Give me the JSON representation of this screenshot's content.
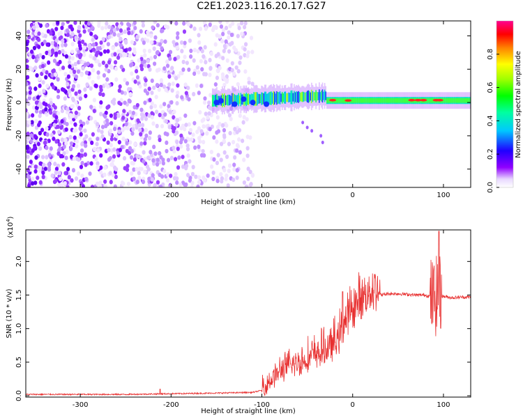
{
  "title": "C2E1.2023.116.20.17.G27",
  "chart_data": [
    {
      "type": "heatmap",
      "xlabel": "Height of straight line (km)",
      "ylabel": "Frequency (Hz)",
      "xlim": [
        -360,
        130
      ],
      "ylim": [
        -51,
        49
      ],
      "x_ticks": [
        -300,
        -200,
        -100,
        0,
        100
      ],
      "y_ticks": [
        40,
        20,
        0,
        -20,
        -40
      ],
      "colorbar": {
        "label": "Normalized spectral amplitude",
        "range": [
          0.0,
          1.0
        ],
        "ticks": [
          "0.0",
          "0.2",
          "0.4",
          "0.6",
          "0.8"
        ],
        "colormap": "rainbow (white → purple → blue → cyan → green → yellow → red → magenta)"
      },
      "regions": [
        {
          "x": [
            -360,
            -110
          ],
          "y": [
            -51,
            49
          ],
          "amplitude": [
            0.0,
            0.15
          ]
        },
        {
          "x": [
            -155,
            130
          ],
          "y": [
            -5,
            8
          ],
          "amplitude": [
            0.3,
            0.9
          ]
        }
      ]
    },
    {
      "type": "line",
      "xlabel": "Height of straight line (km)",
      "ylabel": "SNR (10 * v/v)",
      "y_multiplier": "(x10",
      "y_multiplier_exp": "4",
      "y_multiplier_close": ")",
      "xlim": [
        -360,
        130
      ],
      "ylim": [
        -0.02,
        2.47
      ],
      "x_ticks": [
        -300,
        -200,
        -100,
        0,
        100
      ],
      "y_ticks": [
        "0.0",
        "0.5",
        "1.0",
        "1.5",
        "2.0"
      ],
      "color": "#e83030",
      "series": [
        {
          "x": [
            -360,
            -300,
            -250,
            -200,
            -150,
            -110,
            -100,
            -95,
            -90,
            -85,
            -80,
            -75,
            -70,
            -60,
            -50,
            -40,
            -30,
            -20,
            -15,
            -10,
            -5,
            0,
            10,
            20,
            30,
            40,
            50,
            60,
            70,
            80,
            85,
            90,
            93,
            95,
            97,
            100,
            110,
            120,
            130
          ],
          "y": [
            0.02,
            0.02,
            0.02,
            0.03,
            0.04,
            0.05,
            0.08,
            0.12,
            0.18,
            0.25,
            0.3,
            0.35,
            0.38,
            0.42,
            0.48,
            0.55,
            0.6,
            0.7,
            0.8,
            0.95,
            1.1,
            1.2,
            1.35,
            1.45,
            1.5,
            1.52,
            1.52,
            1.51,
            1.5,
            1.5,
            1.48,
            1.45,
            1.5,
            1.52,
            1.49,
            1.48,
            1.46,
            1.47,
            1.47
          ]
        }
      ]
    }
  ]
}
